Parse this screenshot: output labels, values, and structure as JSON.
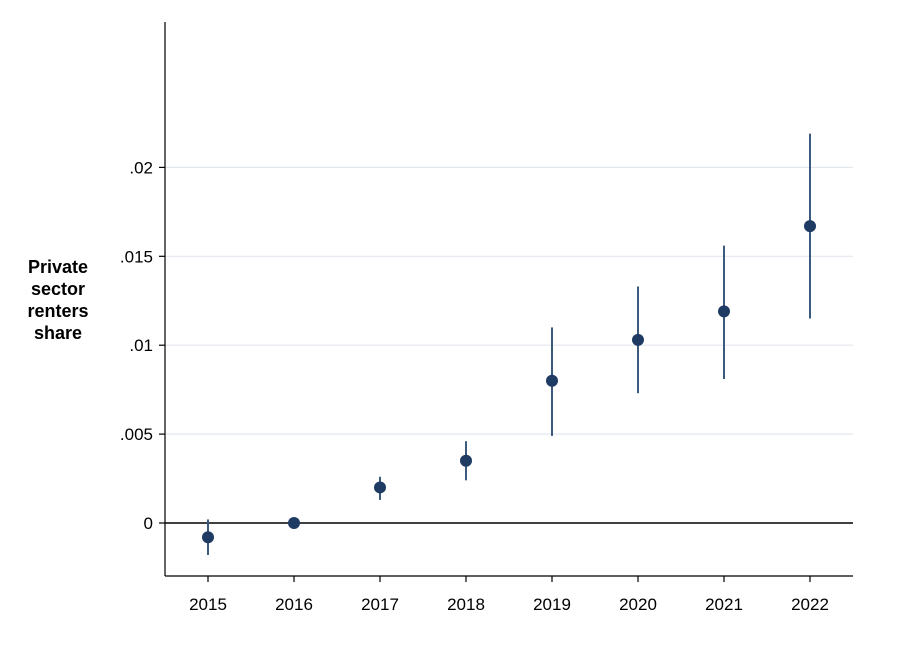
{
  "chart_data": {
    "type": "scatter",
    "title": "",
    "xlabel": "",
    "ylabel_lines": [
      "Private",
      "sector",
      "renters",
      "share"
    ],
    "categories": [
      "2015",
      "2016",
      "2017",
      "2018",
      "2019",
      "2020",
      "2021",
      "2022"
    ],
    "y_ticks": [
      {
        "value": 0,
        "label": "0"
      },
      {
        "value": 0.005,
        "label": ".005"
      },
      {
        "value": 0.01,
        "label": ".01"
      },
      {
        "value": 0.015,
        "label": ".015"
      },
      {
        "value": 0.02,
        "label": ".02"
      }
    ],
    "ylim": [
      -0.0024,
      0.0245
    ],
    "grid": true,
    "zero_line": true,
    "series": [
      {
        "points": [
          {
            "x": "2015",
            "y": -0.0008,
            "ci_low": -0.0018,
            "ci_high": 0.0002
          },
          {
            "x": "2016",
            "y": 0.0,
            "ci_low": 0.0,
            "ci_high": 0.0
          },
          {
            "x": "2017",
            "y": 0.002,
            "ci_low": 0.0013,
            "ci_high": 0.0026
          },
          {
            "x": "2018",
            "y": 0.0035,
            "ci_low": 0.0024,
            "ci_high": 0.0046
          },
          {
            "x": "2019",
            "y": 0.008,
            "ci_low": 0.0049,
            "ci_high": 0.011
          },
          {
            "x": "2020",
            "y": 0.0103,
            "ci_low": 0.0073,
            "ci_high": 0.0133
          },
          {
            "x": "2021",
            "y": 0.0119,
            "ci_low": 0.0081,
            "ci_high": 0.0156
          },
          {
            "x": "2022",
            "y": 0.0167,
            "ci_low": 0.0115,
            "ci_high": 0.0219
          }
        ]
      }
    ],
    "colors": {
      "marker": "#1f3a63",
      "ci_line": "#3c5a7e",
      "grid": "#e3e8ef",
      "axis": "#000000"
    }
  }
}
